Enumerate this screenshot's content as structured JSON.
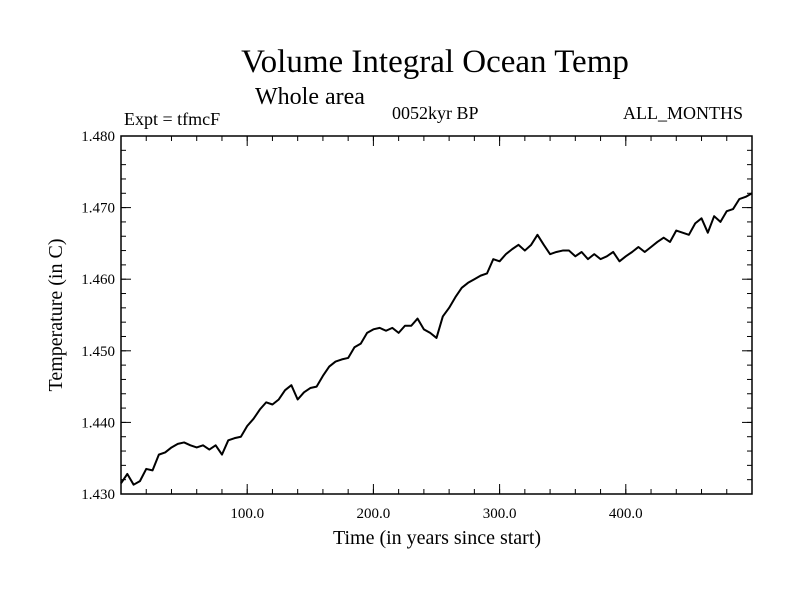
{
  "header": {
    "title": "Volume Integral Ocean Temp",
    "subtitle": "Whole area",
    "experiment": "Expt = tfmcF",
    "epoch": "0052kyr BP",
    "months": "ALL_MONTHS"
  },
  "chart_data": {
    "type": "line",
    "title": "Volume Integral Ocean Temp",
    "subtitle": "Whole area",
    "xlabel": "Time (in years since start)",
    "ylabel": "Temperature (in C)",
    "xlim": [
      0,
      500
    ],
    "ylim": [
      1.43,
      1.48
    ],
    "xticks": [
      100,
      200,
      300,
      400
    ],
    "xtick_labels": [
      "100.0",
      "200.0",
      "300.0",
      "400.0"
    ],
    "yticks": [
      1.43,
      1.44,
      1.45,
      1.46,
      1.47,
      1.48
    ],
    "ytick_labels": [
      "1.430",
      "1.440",
      "1.450",
      "1.460",
      "1.470",
      "1.480"
    ],
    "grid": false,
    "series": [
      {
        "color": "#000000",
        "x": [
          0,
          5,
          10,
          15,
          20,
          25,
          30,
          35,
          40,
          45,
          50,
          55,
          60,
          65,
          70,
          75,
          80,
          85,
          90,
          95,
          100,
          105,
          110,
          115,
          120,
          125,
          130,
          135,
          140,
          145,
          150,
          155,
          160,
          165,
          170,
          175,
          180,
          185,
          190,
          195,
          200,
          205,
          210,
          215,
          220,
          225,
          230,
          235,
          240,
          245,
          250,
          255,
          260,
          265,
          270,
          275,
          280,
          285,
          290,
          295,
          300,
          305,
          310,
          315,
          320,
          325,
          330,
          335,
          340,
          345,
          350,
          355,
          360,
          365,
          370,
          375,
          380,
          385,
          390,
          395,
          400,
          405,
          410,
          415,
          420,
          425,
          430,
          435,
          440,
          445,
          450,
          455,
          460,
          465,
          470,
          475,
          480,
          485,
          490,
          495,
          500
        ],
        "y": [
          1.4315,
          1.4328,
          1.4313,
          1.4318,
          1.4335,
          1.4333,
          1.4355,
          1.4358,
          1.4365,
          1.437,
          1.4372,
          1.4368,
          1.4365,
          1.4368,
          1.4362,
          1.4368,
          1.4355,
          1.4375,
          1.4378,
          1.438,
          1.4395,
          1.4405,
          1.4418,
          1.4428,
          1.4425,
          1.4432,
          1.4445,
          1.4452,
          1.4432,
          1.4442,
          1.4448,
          1.445,
          1.4465,
          1.4478,
          1.4485,
          1.4488,
          1.449,
          1.4505,
          1.451,
          1.4525,
          1.453,
          1.4532,
          1.4528,
          1.4532,
          1.4525,
          1.4535,
          1.4535,
          1.4545,
          1.453,
          1.4525,
          1.4518,
          1.4548,
          1.456,
          1.4575,
          1.4588,
          1.4595,
          1.46,
          1.4605,
          1.4608,
          1.4628,
          1.4625,
          1.4635,
          1.4642,
          1.4648,
          1.464,
          1.4648,
          1.4662,
          1.4648,
          1.4635,
          1.4638,
          1.464,
          1.464,
          1.4632,
          1.4638,
          1.4628,
          1.4635,
          1.4628,
          1.4632,
          1.4638,
          1.4625,
          1.4632,
          1.4638,
          1.4645,
          1.4638,
          1.4645,
          1.4652,
          1.4658,
          1.4652,
          1.4668,
          1.4665,
          1.4662,
          1.4678,
          1.4685,
          1.4665,
          1.4688,
          1.468,
          1.4695,
          1.4698,
          1.4712,
          1.4715,
          1.472
        ]
      }
    ]
  }
}
